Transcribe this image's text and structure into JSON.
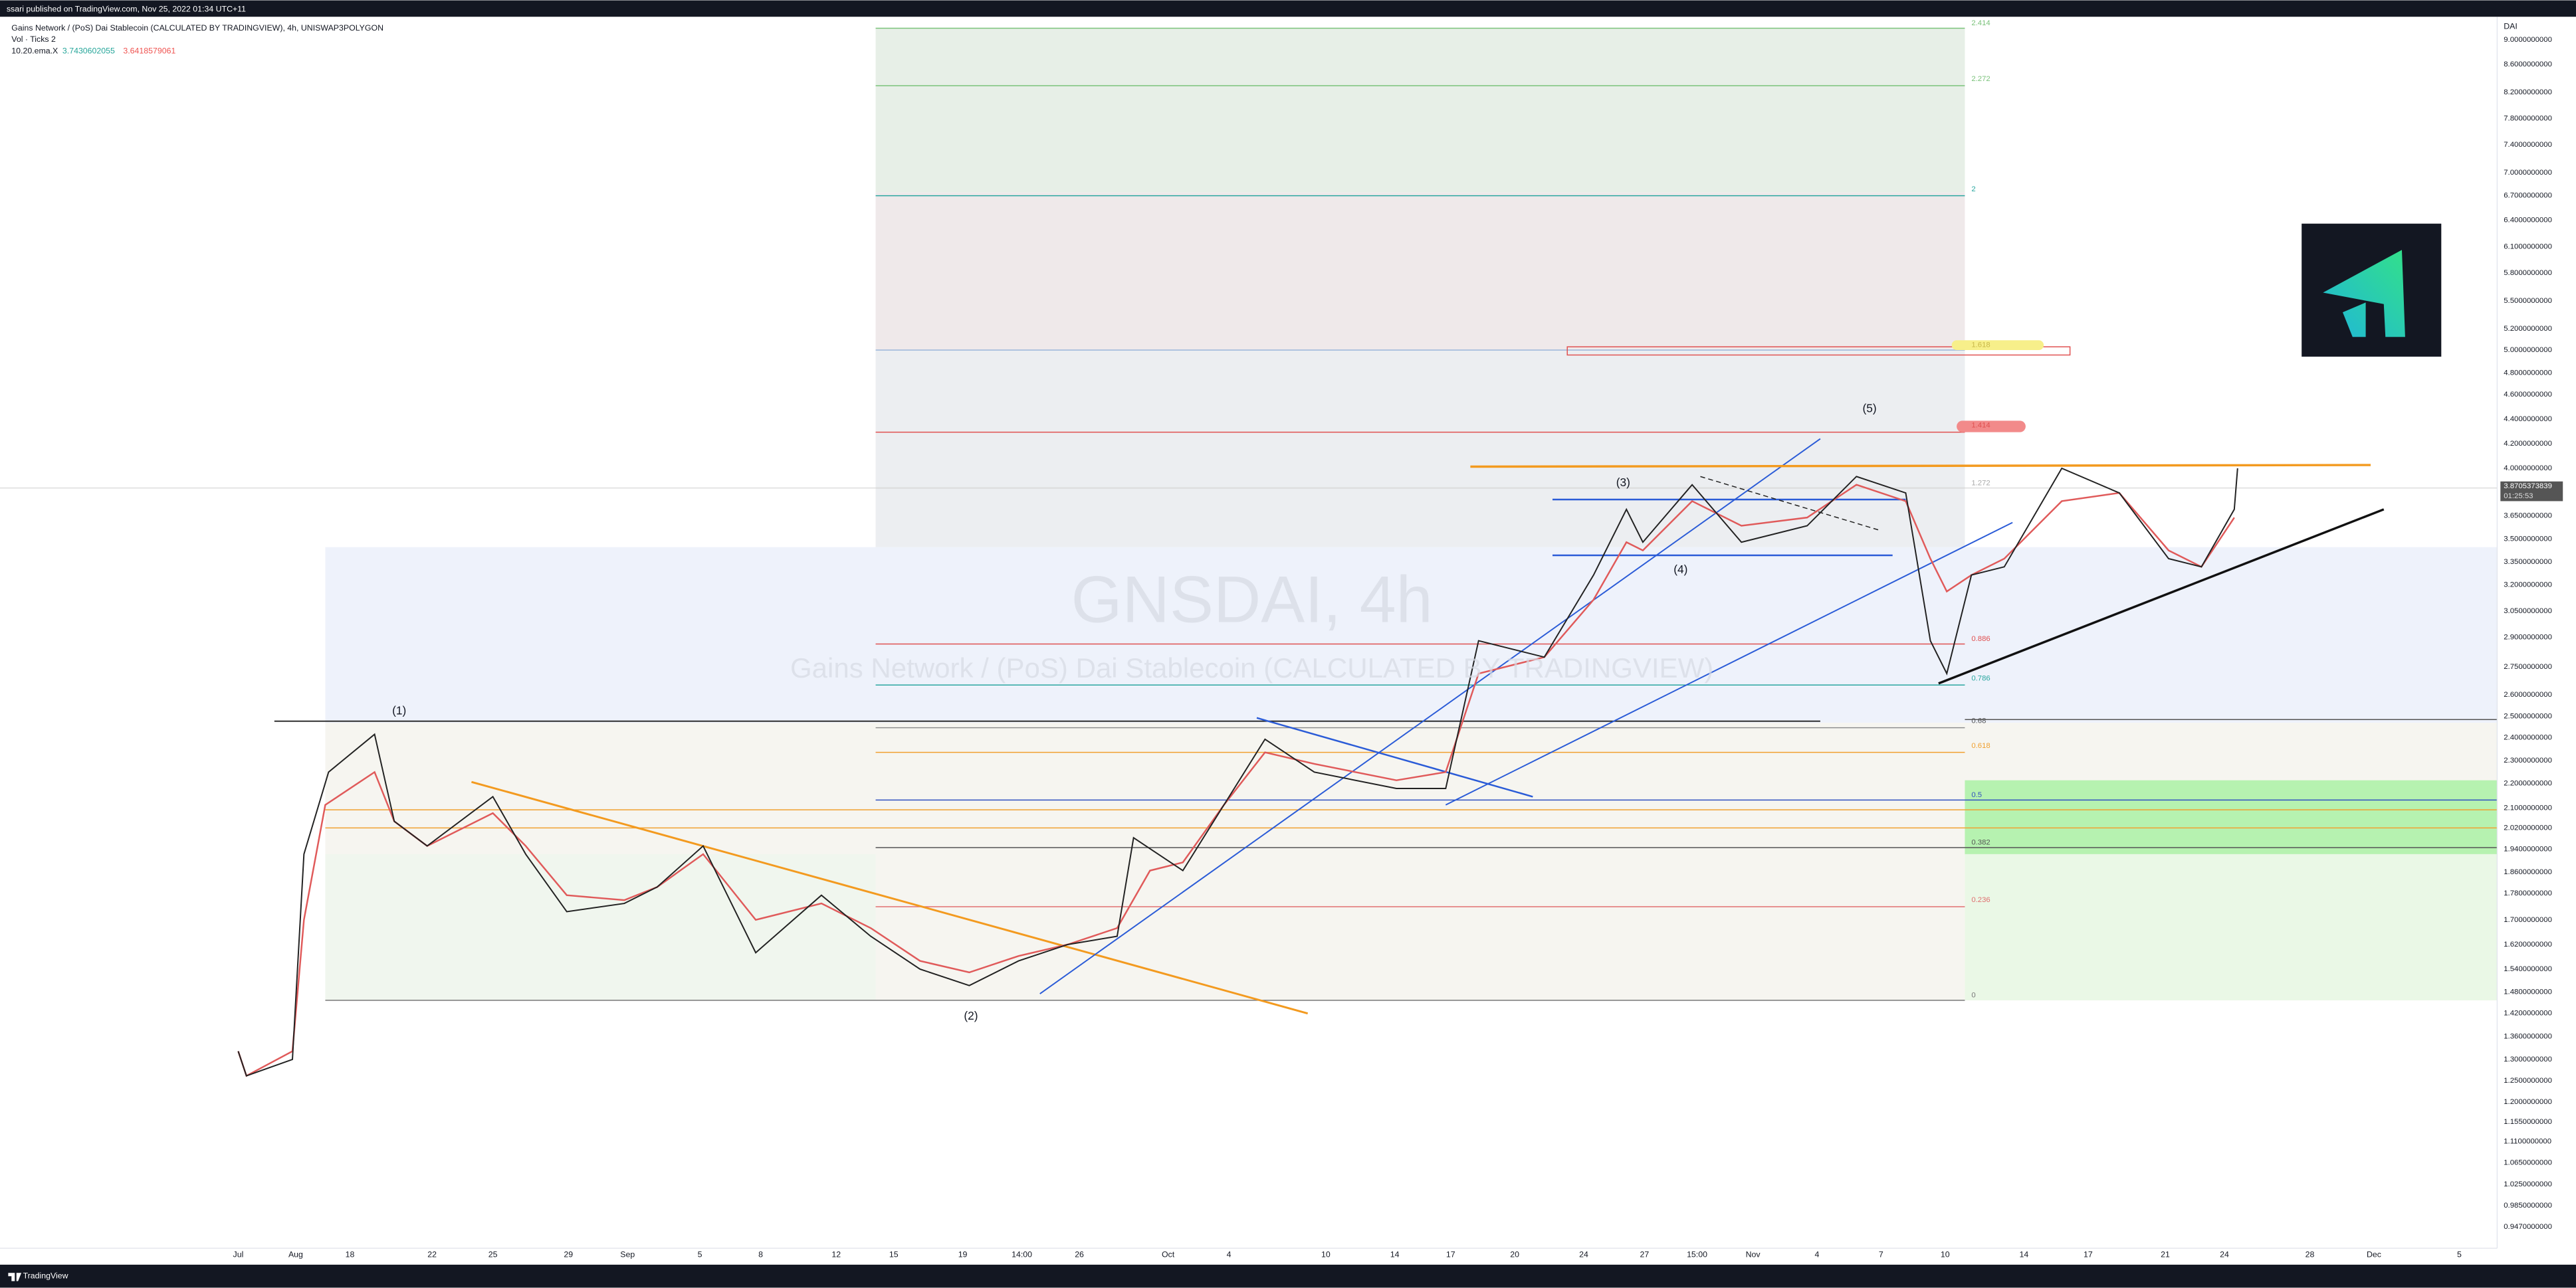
{
  "header": {
    "text": "ssari published on TradingView.com, Nov 25, 2022 01:34 UTC+11"
  },
  "legend": {
    "symbol": "Gains Network / (PoS) Dai Stablecoin (CALCULATED BY TRADINGVIEW), 4h, UNISWAP3POLYGON",
    "volume": "Vol · Ticks  2",
    "ema_label": "10.20.ema.X",
    "ema_values": [
      "3.7430602055",
      "3.6418579061"
    ]
  },
  "watermark": {
    "symbol": "GNSDAI, 4h",
    "name": "Gains Network / (PoS) Dai Stablecoin (CALCULATED BY TRADINGVIEW)"
  },
  "price_axis": {
    "currency": "DAI",
    "labels": [
      "9.0000000000",
      "8.6000000000",
      "8.2000000000",
      "7.8000000000",
      "7.4000000000",
      "7.0000000000",
      "6.7000000000",
      "6.4000000000",
      "6.1000000000",
      "5.8000000000",
      "5.5000000000",
      "5.2000000000",
      "5.0000000000",
      "4.8000000000",
      "4.6000000000",
      "4.4000000000",
      "4.2000000000",
      "4.0000000000",
      "3.6500000000",
      "3.5000000000",
      "3.3500000000",
      "3.2000000000",
      "3.0500000000",
      "2.9000000000",
      "2.7500000000",
      "2.6000000000",
      "2.5000000000",
      "2.4000000000",
      "2.3000000000",
      "2.2000000000",
      "2.1000000000",
      "2.0200000000",
      "1.9400000000",
      "1.8600000000",
      "1.7800000000",
      "1.7000000000",
      "1.6200000000",
      "1.5400000000",
      "1.4800000000",
      "1.4200000000",
      "1.3600000000",
      "1.3000000000",
      "1.2500000000",
      "1.2000000000",
      "1.1550000000",
      "1.1100000000",
      "1.0650000000",
      "1.0250000000",
      "0.9850000000",
      "0.9470000000"
    ],
    "last_price": "3.8705373839",
    "countdown": "01:25:53"
  },
  "time_axis": {
    "labels": [
      "Jul",
      "Aug",
      "18",
      "22",
      "25",
      "29",
      "Sep",
      "5",
      "8",
      "12",
      "15",
      "19",
      "14:00",
      "26",
      "Oct",
      "4",
      "10",
      "14",
      "17",
      "20",
      "24",
      "27",
      "15:00",
      "Nov",
      "4",
      "7",
      "10",
      "14",
      "17",
      "21",
      "24",
      "28",
      "Dec",
      "5"
    ]
  },
  "fib_levels": [
    "2.414",
    "2.272",
    "2",
    "1.618",
    "1.414",
    "1.272",
    "0.886",
    "0.786",
    "0.68",
    "0.618",
    "0.5",
    "0.382",
    "0.236",
    "0"
  ],
  "waves": [
    "(1)",
    "(2)",
    "(3)",
    "(4)",
    "(5)"
  ],
  "footer": {
    "brand": "TradingView"
  }
}
